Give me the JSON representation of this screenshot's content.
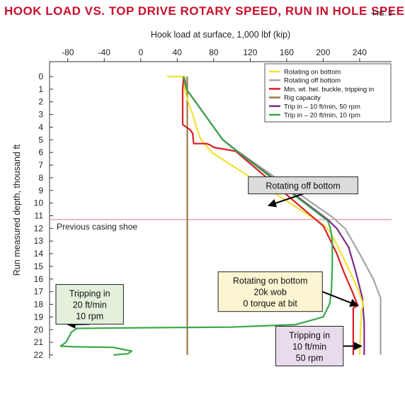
{
  "title": "HOOK LOAD VS. TOP DRIVE ROTARY SPEED, RUN IN HOLE SPEED",
  "figure_label": "FIG. 2",
  "chart_data": {
    "type": "line",
    "title": "HOOK LOAD VS. TOP DRIVE ROTARY SPEED, RUN IN HOLE SPEED",
    "xlabel": "Hook load at surface, 1,000 lbf (kip)",
    "ylabel": "Run measured depth, thousand ft",
    "xlim": [
      -100,
      275
    ],
    "ylim": [
      0,
      22
    ],
    "y_inverted": true,
    "x_ticks": [
      -80,
      -40,
      0,
      40,
      80,
      120,
      160,
      200,
      240
    ],
    "y_ticks": [
      0,
      1,
      2,
      3,
      4,
      5,
      6,
      7,
      8,
      9,
      10,
      11,
      12,
      13,
      14,
      15,
      16,
      17,
      18,
      19,
      20,
      21,
      22
    ],
    "grid": false,
    "legend_position": "top-right",
    "series": [
      {
        "name": "Rotating on bottom",
        "color": "#f5e132",
        "points": [
          [
            29,
            0
          ],
          [
            48,
            0
          ],
          [
            48,
            0.5
          ],
          [
            48,
            1
          ],
          [
            52,
            2
          ],
          [
            57,
            3
          ],
          [
            61,
            4
          ],
          [
            66,
            5
          ],
          [
            78,
            6
          ],
          [
            200,
            11.7
          ],
          [
            208,
            12.3
          ],
          [
            220,
            14
          ],
          [
            230,
            15.5
          ],
          [
            238,
            16.8
          ],
          [
            244,
            18
          ],
          [
            242,
            18.5
          ],
          [
            240,
            22
          ]
        ]
      },
      {
        "name": "Rotating off bottom",
        "color": "#a6a6a6",
        "points": [
          [
            48,
            0
          ],
          [
            50,
            1
          ],
          [
            60,
            2
          ],
          [
            70,
            3
          ],
          [
            80,
            4
          ],
          [
            90,
            5
          ],
          [
            104,
            5.8
          ],
          [
            210,
            11.1
          ],
          [
            224,
            12
          ],
          [
            240,
            14
          ],
          [
            255,
            16
          ],
          [
            263,
            17.5
          ],
          [
            263,
            22
          ]
        ]
      },
      {
        "name": "Min. wt. hel. buckle, tripping in",
        "color": "#d91f26",
        "points": [
          [
            47,
            0
          ],
          [
            46,
            1
          ],
          [
            46,
            2
          ],
          [
            46,
            3
          ],
          [
            46,
            3.8
          ],
          [
            54,
            4.2
          ],
          [
            57,
            4.5
          ],
          [
            58,
            5.3
          ],
          [
            72,
            5.3
          ],
          [
            76,
            5.4
          ],
          [
            80,
            5.6
          ],
          [
            104,
            5.9
          ],
          [
            200,
            11.8
          ],
          [
            205,
            12.5
          ],
          [
            215,
            14
          ],
          [
            223,
            15.5
          ],
          [
            232,
            17
          ],
          [
            238,
            18.1
          ],
          [
            233,
            18.3
          ],
          [
            233,
            22
          ]
        ]
      },
      {
        "name": "Rig capacity",
        "color": "#9c7b4e",
        "points": [
          [
            51,
            0
          ],
          [
            51,
            22
          ]
        ]
      },
      {
        "name": "Trip in – 10 ft/min, 50 rpm",
        "color": "#7b2a8a",
        "points": [
          [
            48,
            0
          ],
          [
            50,
            1
          ],
          [
            60,
            2
          ],
          [
            70,
            3
          ],
          [
            80,
            4
          ],
          [
            90,
            5
          ],
          [
            104,
            5.8
          ],
          [
            205,
            11.3
          ],
          [
            215,
            12
          ],
          [
            228,
            13.5
          ],
          [
            236,
            15.5
          ],
          [
            243,
            17.5
          ],
          [
            245,
            19.5
          ],
          [
            245,
            22
          ]
        ]
      },
      {
        "name": "Trip in – 20 ft/min, 10 rpm",
        "color": "#3aa849",
        "points": [
          [
            47,
            0
          ],
          [
            50,
            1
          ],
          [
            60,
            2
          ],
          [
            70,
            3
          ],
          [
            80,
            4
          ],
          [
            90,
            5
          ],
          [
            100,
            5.6
          ],
          [
            205,
            11.4
          ],
          [
            208,
            12
          ],
          [
            210,
            13
          ],
          [
            210,
            15
          ],
          [
            209,
            17
          ],
          [
            207,
            18
          ],
          [
            200,
            19
          ],
          [
            170,
            19.6
          ],
          [
            100,
            19.8
          ],
          [
            0,
            19.85
          ],
          [
            -70,
            19.9
          ],
          [
            -76,
            20.2
          ],
          [
            -82,
            21
          ],
          [
            -88,
            21.3
          ],
          [
            -75,
            21.35
          ],
          [
            -30,
            21.4
          ],
          [
            -20,
            21.55
          ],
          [
            -10,
            21.7
          ],
          [
            -14,
            21.9
          ],
          [
            -30,
            22
          ]
        ]
      }
    ],
    "reference_line": {
      "y": 11.3,
      "label": "Previous casing shoe",
      "color": "#d9779a"
    },
    "annotations": [
      {
        "lines": [
          "Rotating off bottom"
        ],
        "x": 178,
        "y": 8.6,
        "arrow_to": [
          140,
          10.2
        ],
        "bg": "#dcdcdc"
      },
      {
        "lines": [
          "Rotating on bottom",
          "20k wob",
          "0 torque at bit"
        ],
        "x": 142,
        "y": 17,
        "arrow_to": [
          238,
          18.1
        ],
        "bg": "#fdf5d2"
      },
      {
        "lines": [
          "Tripping in",
          "20 ft/min",
          "10 rpm"
        ],
        "x": -56,
        "y": 18,
        "arrow_to": [
          -80,
          19.6
        ],
        "bg": "#e2f0dc"
      },
      {
        "lines": [
          "Tripping in",
          "10 ft/min",
          "50 rpm"
        ],
        "x": 185,
        "y": 21.3,
        "arrow_to": [
          242,
          21.3
        ],
        "bg": "#e8dcec"
      }
    ]
  }
}
